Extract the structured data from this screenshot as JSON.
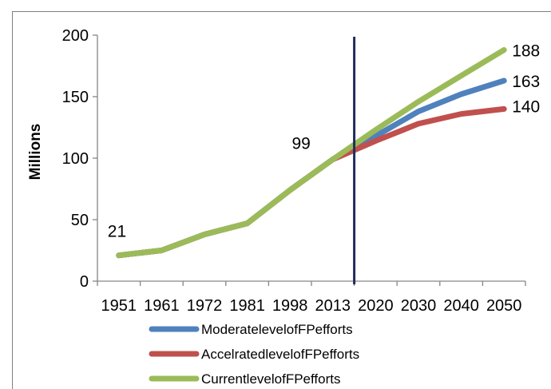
{
  "chart_data": {
    "type": "line",
    "title": "",
    "xlabel": "",
    "ylabel": "Millions",
    "ylim": [
      0,
      200
    ],
    "yticks": [
      0,
      50,
      100,
      150,
      200
    ],
    "categories": [
      "1951",
      "1961",
      "1972",
      "1981",
      "1998",
      "2013",
      "2020",
      "2030",
      "2040",
      "2050"
    ],
    "reference_line": {
      "category": "2013",
      "color": "#1f2d5a"
    },
    "series": [
      {
        "name": "ModeratelevelofFPefforts",
        "color": "#4f81bd",
        "values": [
          21,
          25,
          38,
          47,
          74,
          99,
          118,
          138,
          152,
          163
        ]
      },
      {
        "name": "AccelratedlevelofFPefforts",
        "color": "#c0504d",
        "values": [
          21,
          25,
          38,
          47,
          74,
          99,
          114,
          128,
          136,
          140
        ]
      },
      {
        "name": "CurrentlevelofFPefforts",
        "color": "#9bbb59",
        "values": [
          21,
          25,
          38,
          47,
          74,
          99,
          123,
          146,
          167,
          188
        ]
      }
    ],
    "data_labels": [
      {
        "category": "1951",
        "text": "21"
      },
      {
        "category": "2013",
        "text": "99"
      },
      {
        "category": "2050",
        "text": "188"
      },
      {
        "category": "2050",
        "text": "163"
      },
      {
        "category": "2050",
        "text": "140"
      }
    ],
    "legend_position": "bottom",
    "grid": false
  }
}
